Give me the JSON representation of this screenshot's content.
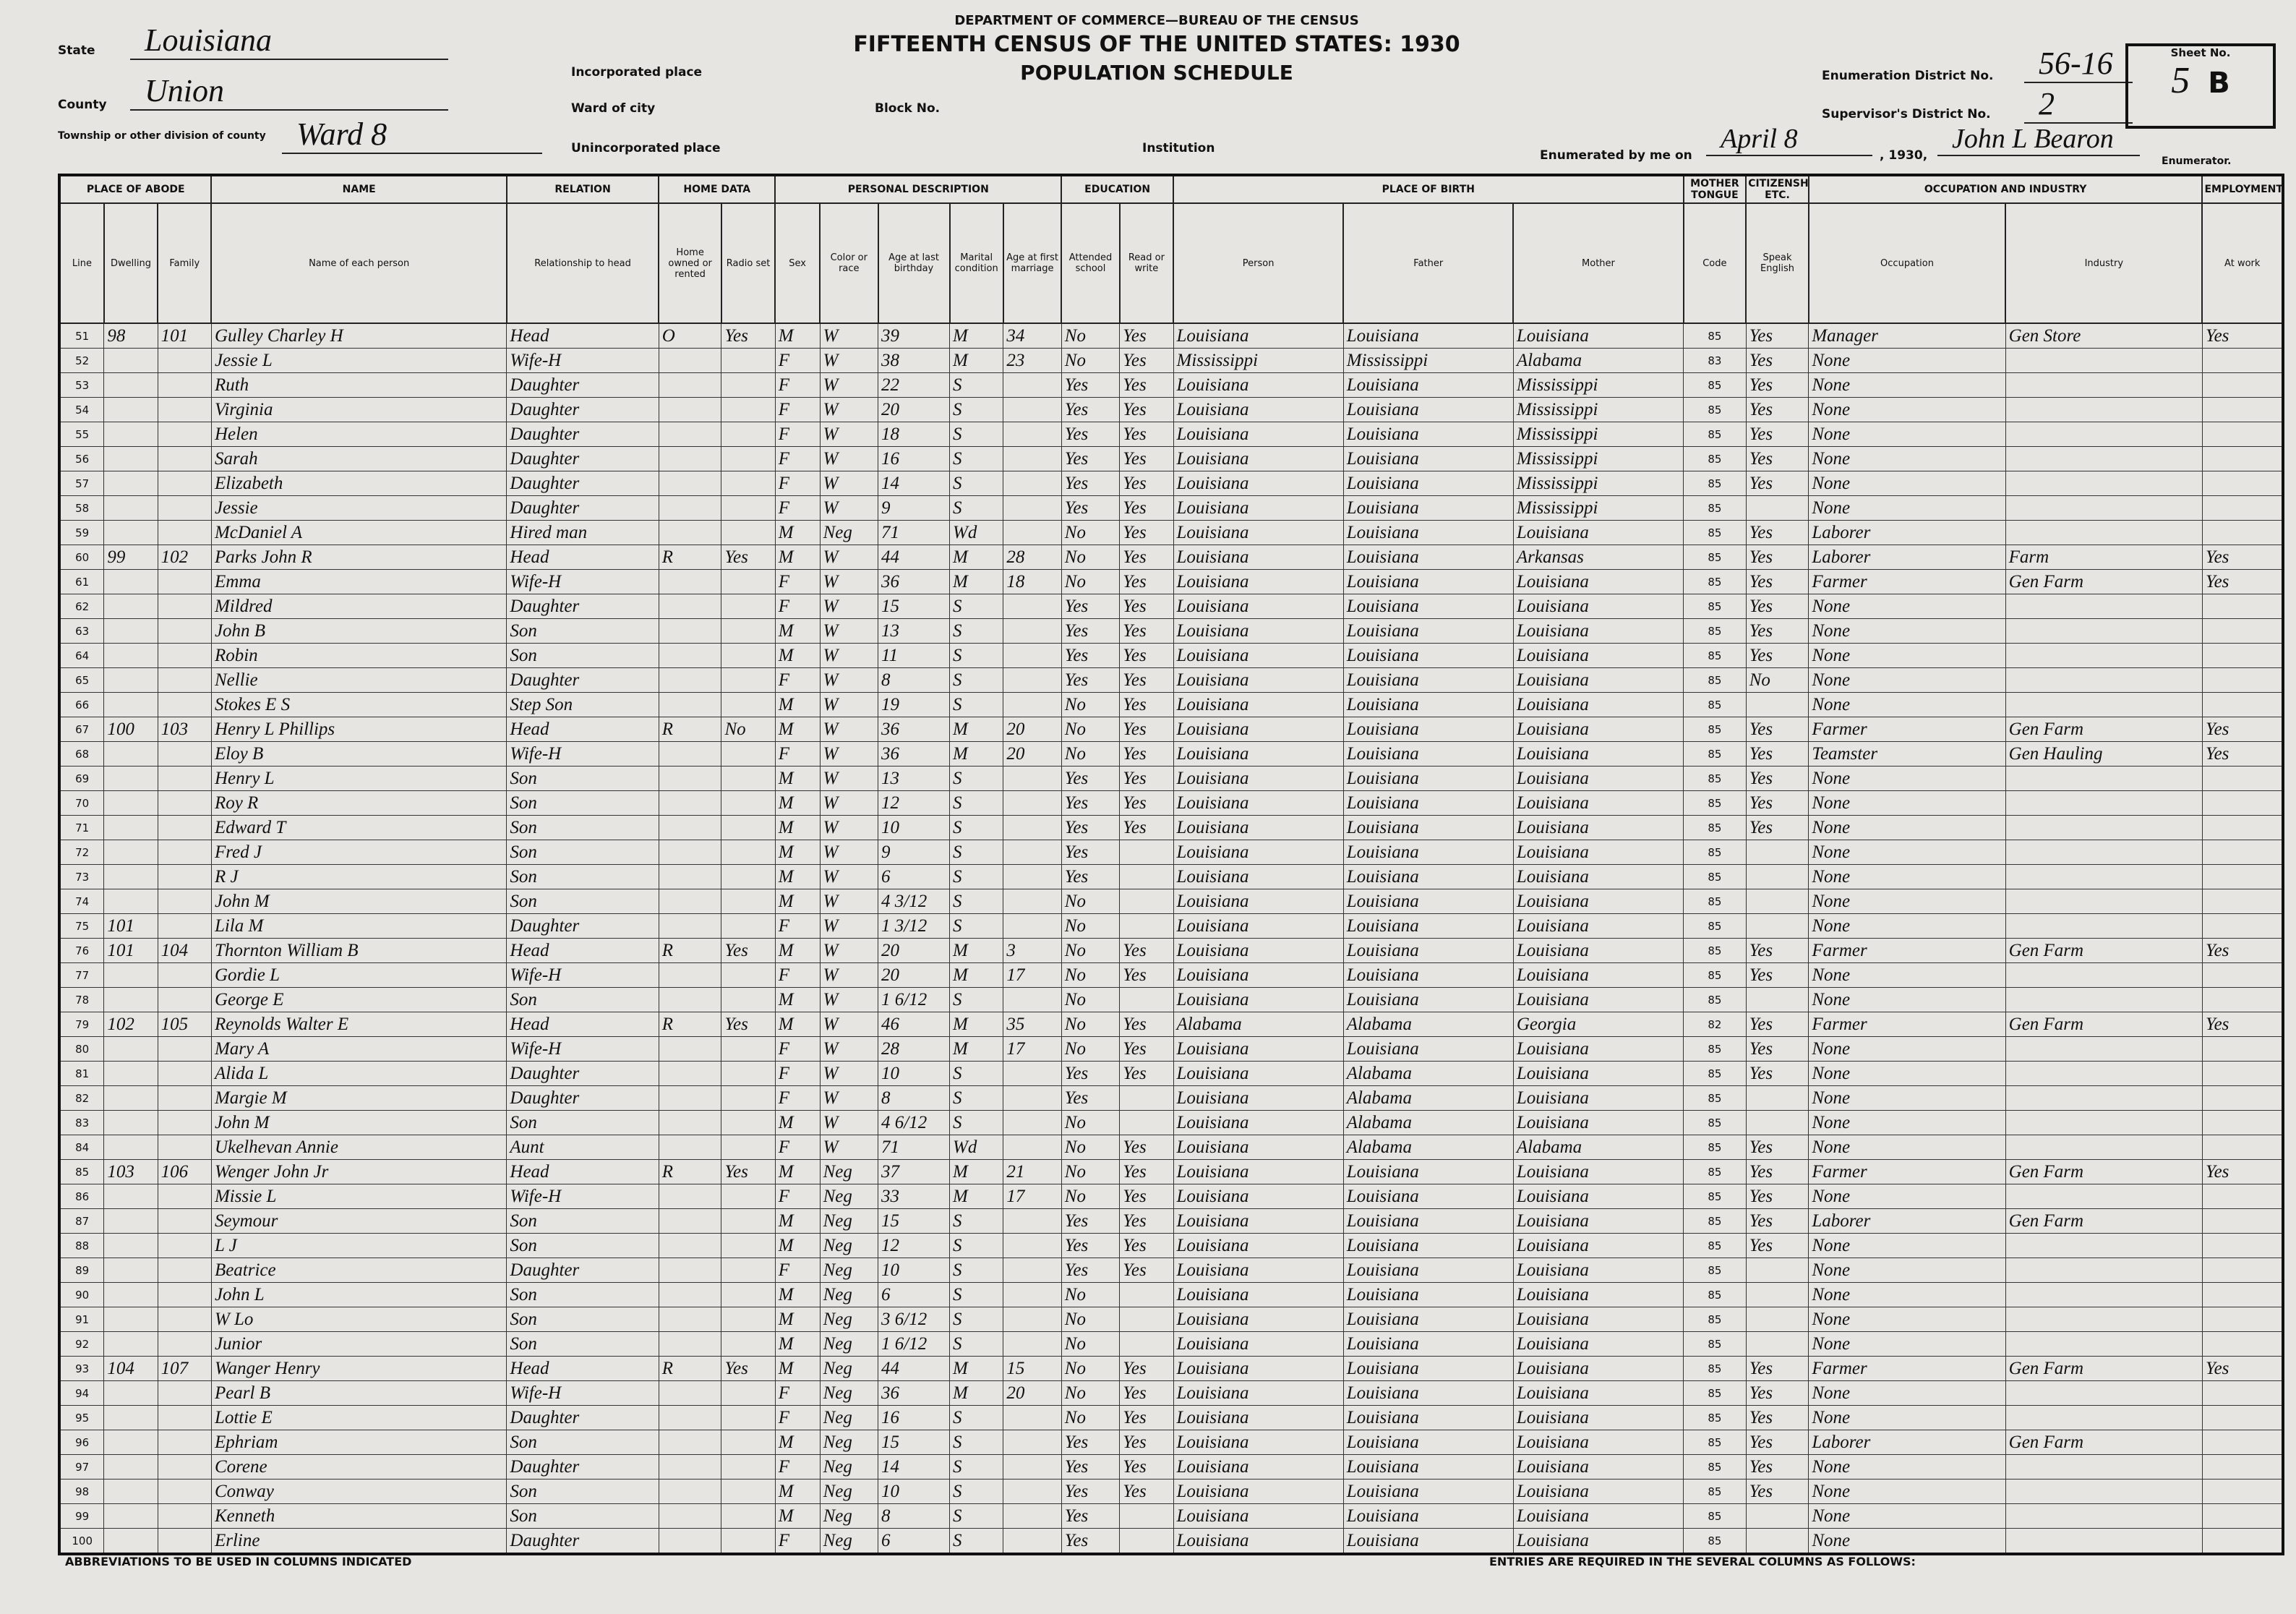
{
  "header": {
    "department": "DEPARTMENT OF COMMERCE—BUREAU OF THE CENSUS",
    "title": "FIFTEENTH CENSUS OF THE UNITED STATES: 1930",
    "subtitle": "POPULATION SCHEDULE",
    "state_label": "State",
    "state": "Louisiana",
    "county_label": "County",
    "county": "Union",
    "township_label": "Township or other division of county",
    "township": "Ward 8",
    "incorporated_label": "Incorporated place",
    "ward_label": "Ward of city",
    "block_label": "Block No.",
    "unincorporated_label": "Unincorporated place",
    "institution_label": "Institution",
    "district_label": "Enumeration District No.",
    "district": "56-16",
    "supervisor_label": "Supervisor's District No.",
    "supervisor": "2",
    "sheet_label": "Sheet No.",
    "sheet": "5",
    "sheet_side": "B",
    "enumerated_label": "Enumerated by me on",
    "date": "April 8",
    "year": ", 1930,",
    "enumerator": "John L Bearon",
    "enumerator_label": "Enumerator."
  },
  "table": {
    "groups": [
      "PLACE OF ABODE",
      "NAME",
      "RELATION",
      "HOME DATA",
      "PERSONAL DESCRIPTION",
      "EDUCATION",
      "PLACE OF BIRTH",
      "MOTHER TONGUE",
      "CITIZENSHIP, ETC.",
      "OCCUPATION AND INDUSTRY",
      "EMPLOYMENT"
    ],
    "columns": [
      "Line",
      "Dwelling",
      "Family",
      "Name of each person",
      "Relationship to head",
      "Home owned or rented",
      "Radio set",
      "Sex",
      "Color or race",
      "Age at last birthday",
      "Marital condition",
      "Age at first marriage",
      "Attended school",
      "Read or write",
      "Person",
      "Father",
      "Mother",
      "Code",
      "Speak English",
      "Occupation",
      "Industry",
      "At work"
    ],
    "rows": [
      [
        51,
        98,
        101,
        "Gulley Charley H",
        "Head",
        "O",
        "Yes",
        "M",
        "W",
        39,
        "M",
        34,
        "No",
        "Yes",
        "Louisiana",
        "Louisiana",
        "Louisiana",
        85,
        "Yes",
        "Manager",
        "Gen Store",
        "Yes"
      ],
      [
        52,
        null,
        null,
        "Jessie L",
        "Wife-H",
        null,
        null,
        "F",
        "W",
        38,
        "M",
        23,
        "No",
        "Yes",
        "Mississippi",
        "Mississippi",
        "Alabama",
        83,
        "Yes",
        "None",
        null,
        null
      ],
      [
        53,
        null,
        null,
        "Ruth",
        "Daughter",
        null,
        null,
        "F",
        "W",
        22,
        "S",
        null,
        "Yes",
        "Yes",
        "Louisiana",
        "Louisiana",
        "Mississippi",
        85,
        "Yes",
        "None",
        null,
        null
      ],
      [
        54,
        null,
        null,
        "Virginia",
        "Daughter",
        null,
        null,
        "F",
        "W",
        20,
        "S",
        null,
        "Yes",
        "Yes",
        "Louisiana",
        "Louisiana",
        "Mississippi",
        85,
        "Yes",
        "None",
        null,
        null
      ],
      [
        55,
        null,
        null,
        "Helen",
        "Daughter",
        null,
        null,
        "F",
        "W",
        18,
        "S",
        null,
        "Yes",
        "Yes",
        "Louisiana",
        "Louisiana",
        "Mississippi",
        85,
        "Yes",
        "None",
        null,
        null
      ],
      [
        56,
        null,
        null,
        "Sarah",
        "Daughter",
        null,
        null,
        "F",
        "W",
        16,
        "S",
        null,
        "Yes",
        "Yes",
        "Louisiana",
        "Louisiana",
        "Mississippi",
        85,
        "Yes",
        "None",
        null,
        null
      ],
      [
        57,
        null,
        null,
        "Elizabeth",
        "Daughter",
        null,
        null,
        "F",
        "W",
        14,
        "S",
        null,
        "Yes",
        "Yes",
        "Louisiana",
        "Louisiana",
        "Mississippi",
        85,
        "Yes",
        "None",
        null,
        null
      ],
      [
        58,
        null,
        null,
        "Jessie",
        "Daughter",
        null,
        null,
        "F",
        "W",
        9,
        "S",
        null,
        "Yes",
        "Yes",
        "Louisiana",
        "Louisiana",
        "Mississippi",
        85,
        null,
        "None",
        null,
        null
      ],
      [
        59,
        null,
        null,
        "McDaniel A",
        "Hired man",
        null,
        null,
        "M",
        "Neg",
        71,
        "Wd",
        null,
        "No",
        "Yes",
        "Louisiana",
        "Louisiana",
        "Louisiana",
        85,
        "Yes",
        "Laborer",
        null,
        null
      ],
      [
        60,
        99,
        102,
        "Parks John R",
        "Head",
        "R",
        "Yes",
        "M",
        "W",
        44,
        "M",
        28,
        "No",
        "Yes",
        "Louisiana",
        "Louisiana",
        "Arkansas",
        85,
        "Yes",
        "Laborer",
        "Farm",
        "Yes"
      ],
      [
        61,
        null,
        null,
        "Emma",
        "Wife-H",
        null,
        null,
        "F",
        "W",
        36,
        "M",
        18,
        "No",
        "Yes",
        "Louisiana",
        "Louisiana",
        "Louisiana",
        85,
        "Yes",
        "Farmer",
        "Gen Farm",
        "Yes"
      ],
      [
        62,
        null,
        null,
        "Mildred",
        "Daughter",
        null,
        null,
        "F",
        "W",
        15,
        "S",
        null,
        "Yes",
        "Yes",
        "Louisiana",
        "Louisiana",
        "Louisiana",
        85,
        "Yes",
        "None",
        null,
        null
      ],
      [
        63,
        null,
        null,
        "John B",
        "Son",
        null,
        null,
        "M",
        "W",
        13,
        "S",
        null,
        "Yes",
        "Yes",
        "Louisiana",
        "Louisiana",
        "Louisiana",
        85,
        "Yes",
        "None",
        null,
        null
      ],
      [
        64,
        null,
        null,
        "Robin",
        "Son",
        null,
        null,
        "M",
        "W",
        11,
        "S",
        null,
        "Yes",
        "Yes",
        "Louisiana",
        "Louisiana",
        "Louisiana",
        85,
        "Yes",
        "None",
        null,
        null
      ],
      [
        65,
        null,
        null,
        "Nellie",
        "Daughter",
        null,
        null,
        "F",
        "W",
        8,
        "S",
        null,
        "Yes",
        "Yes",
        "Louisiana",
        "Louisiana",
        "Louisiana",
        85,
        "No",
        "None",
        null,
        null
      ],
      [
        66,
        null,
        null,
        "Stokes E S",
        "Step Son",
        null,
        null,
        "M",
        "W",
        19,
        "S",
        null,
        "No",
        "Yes",
        "Louisiana",
        "Louisiana",
        "Louisiana",
        85,
        null,
        "None",
        null,
        null
      ],
      [
        67,
        100,
        103,
        "Henry L Phillips",
        "Head",
        "R",
        "No",
        "M",
        "W",
        36,
        "M",
        20,
        "No",
        "Yes",
        "Louisiana",
        "Louisiana",
        "Louisiana",
        85,
        "Yes",
        "Farmer",
        "Gen Farm",
        "Yes"
      ],
      [
        68,
        null,
        null,
        "Eloy B",
        "Wife-H",
        null,
        null,
        "F",
        "W",
        36,
        "M",
        20,
        "No",
        "Yes",
        "Louisiana",
        "Louisiana",
        "Louisiana",
        85,
        "Yes",
        "Teamster",
        "Gen Hauling",
        "Yes"
      ],
      [
        69,
        null,
        null,
        "Henry L",
        "Son",
        null,
        null,
        "M",
        "W",
        13,
        "S",
        null,
        "Yes",
        "Yes",
        "Louisiana",
        "Louisiana",
        "Louisiana",
        85,
        "Yes",
        "None",
        null,
        null
      ],
      [
        70,
        null,
        null,
        "Roy R",
        "Son",
        null,
        null,
        "M",
        "W",
        12,
        "S",
        null,
        "Yes",
        "Yes",
        "Louisiana",
        "Louisiana",
        "Louisiana",
        85,
        "Yes",
        "None",
        null,
        null
      ],
      [
        71,
        null,
        null,
        "Edward T",
        "Son",
        null,
        null,
        "M",
        "W",
        10,
        "S",
        null,
        "Yes",
        "Yes",
        "Louisiana",
        "Louisiana",
        "Louisiana",
        85,
        "Yes",
        "None",
        null,
        null
      ],
      [
        72,
        null,
        null,
        "Fred J",
        "Son",
        null,
        null,
        "M",
        "W",
        9,
        "S",
        null,
        "Yes",
        null,
        "Louisiana",
        "Louisiana",
        "Louisiana",
        85,
        null,
        "None",
        null,
        null
      ],
      [
        73,
        null,
        null,
        "R J",
        "Son",
        null,
        null,
        "M",
        "W",
        6,
        "S",
        null,
        "Yes",
        null,
        "Louisiana",
        "Louisiana",
        "Louisiana",
        85,
        null,
        "None",
        null,
        null
      ],
      [
        74,
        null,
        null,
        "John M",
        "Son",
        null,
        null,
        "M",
        "W",
        "4 3/12",
        "S",
        null,
        "No",
        null,
        "Louisiana",
        "Louisiana",
        "Louisiana",
        85,
        null,
        "None",
        null,
        null
      ],
      [
        75,
        101,
        null,
        "Lila M",
        "Daughter",
        null,
        null,
        "F",
        "W",
        "1 3/12",
        "S",
        null,
        "No",
        null,
        "Louisiana",
        "Louisiana",
        "Louisiana",
        85,
        null,
        "None",
        null,
        null
      ],
      [
        76,
        101,
        104,
        "Thornton William B",
        "Head",
        "R",
        "Yes",
        "M",
        "W",
        20,
        "M",
        3,
        "No",
        "Yes",
        "Louisiana",
        "Louisiana",
        "Louisiana",
        85,
        "Yes",
        "Farmer",
        "Gen Farm",
        "Yes"
      ],
      [
        77,
        null,
        null,
        "Gordie L",
        "Wife-H",
        null,
        null,
        "F",
        "W",
        20,
        "M",
        17,
        "No",
        "Yes",
        "Louisiana",
        "Louisiana",
        "Louisiana",
        85,
        "Yes",
        "None",
        null,
        null
      ],
      [
        78,
        null,
        null,
        "George E",
        "Son",
        null,
        null,
        "M",
        "W",
        "1 6/12",
        "S",
        null,
        "No",
        null,
        "Louisiana",
        "Louisiana",
        "Louisiana",
        85,
        null,
        "None",
        null,
        null
      ],
      [
        79,
        102,
        105,
        "Reynolds Walter E",
        "Head",
        "R",
        "Yes",
        "M",
        "W",
        46,
        "M",
        35,
        "No",
        "Yes",
        "Alabama",
        "Alabama",
        "Georgia",
        82,
        "Yes",
        "Farmer",
        "Gen Farm",
        "Yes"
      ],
      [
        80,
        null,
        null,
        "Mary A",
        "Wife-H",
        null,
        null,
        "F",
        "W",
        28,
        "M",
        17,
        "No",
        "Yes",
        "Louisiana",
        "Louisiana",
        "Louisiana",
        85,
        "Yes",
        "None",
        null,
        null
      ],
      [
        81,
        null,
        null,
        "Alida L",
        "Daughter",
        null,
        null,
        "F",
        "W",
        10,
        "S",
        null,
        "Yes",
        "Yes",
        "Louisiana",
        "Alabama",
        "Louisiana",
        85,
        "Yes",
        "None",
        null,
        null
      ],
      [
        82,
        null,
        null,
        "Margie M",
        "Daughter",
        null,
        null,
        "F",
        "W",
        8,
        "S",
        null,
        "Yes",
        null,
        "Louisiana",
        "Alabama",
        "Louisiana",
        85,
        null,
        "None",
        null,
        null
      ],
      [
        83,
        null,
        null,
        "John M",
        "Son",
        null,
        null,
        "M",
        "W",
        "4 6/12",
        "S",
        null,
        "No",
        null,
        "Louisiana",
        "Alabama",
        "Louisiana",
        85,
        null,
        "None",
        null,
        null
      ],
      [
        84,
        null,
        null,
        "Ukelhevan Annie",
        "Aunt",
        null,
        null,
        "F",
        "W",
        71,
        "Wd",
        null,
        "No",
        "Yes",
        "Louisiana",
        "Alabama",
        "Alabama",
        85,
        "Yes",
        "None",
        null,
        null
      ],
      [
        85,
        103,
        106,
        "Wenger John Jr",
        "Head",
        "R",
        "Yes",
        "M",
        "Neg",
        37,
        "M",
        21,
        "No",
        "Yes",
        "Louisiana",
        "Louisiana",
        "Louisiana",
        85,
        "Yes",
        "Farmer",
        "Gen Farm",
        "Yes"
      ],
      [
        86,
        null,
        null,
        "Missie L",
        "Wife-H",
        null,
        null,
        "F",
        "Neg",
        33,
        "M",
        17,
        "No",
        "Yes",
        "Louisiana",
        "Louisiana",
        "Louisiana",
        85,
        "Yes",
        "None",
        null,
        null
      ],
      [
        87,
        null,
        null,
        "Seymour",
        "Son",
        null,
        null,
        "M",
        "Neg",
        15,
        "S",
        null,
        "Yes",
        "Yes",
        "Louisiana",
        "Louisiana",
        "Louisiana",
        85,
        "Yes",
        "Laborer",
        "Gen Farm",
        null
      ],
      [
        88,
        null,
        null,
        "L J",
        "Son",
        null,
        null,
        "M",
        "Neg",
        12,
        "S",
        null,
        "Yes",
        "Yes",
        "Louisiana",
        "Louisiana",
        "Louisiana",
        85,
        "Yes",
        "None",
        null,
        null
      ],
      [
        89,
        null,
        null,
        "Beatrice",
        "Daughter",
        null,
        null,
        "F",
        "Neg",
        10,
        "S",
        null,
        "Yes",
        "Yes",
        "Louisiana",
        "Louisiana",
        "Louisiana",
        85,
        null,
        "None",
        null,
        null
      ],
      [
        90,
        null,
        null,
        "John L",
        "Son",
        null,
        null,
        "M",
        "Neg",
        6,
        "S",
        null,
        "No",
        null,
        "Louisiana",
        "Louisiana",
        "Louisiana",
        85,
        null,
        "None",
        null,
        null
      ],
      [
        91,
        null,
        null,
        "W Lo",
        "Son",
        null,
        null,
        "M",
        "Neg",
        "3 6/12",
        "S",
        null,
        "No",
        null,
        "Louisiana",
        "Louisiana",
        "Louisiana",
        85,
        null,
        "None",
        null,
        null
      ],
      [
        92,
        null,
        null,
        "Junior",
        "Son",
        null,
        null,
        "M",
        "Neg",
        "1 6/12",
        "S",
        null,
        "No",
        null,
        "Louisiana",
        "Louisiana",
        "Louisiana",
        85,
        null,
        "None",
        null,
        null
      ],
      [
        93,
        104,
        107,
        "Wanger Henry",
        "Head",
        "R",
        "Yes",
        "M",
        "Neg",
        44,
        "M",
        15,
        "No",
        "Yes",
        "Louisiana",
        "Louisiana",
        "Louisiana",
        85,
        "Yes",
        "Farmer",
        "Gen Farm",
        "Yes"
      ],
      [
        94,
        null,
        null,
        "Pearl B",
        "Wife-H",
        null,
        null,
        "F",
        "Neg",
        36,
        "M",
        20,
        "No",
        "Yes",
        "Louisiana",
        "Louisiana",
        "Louisiana",
        85,
        "Yes",
        "None",
        null,
        null
      ],
      [
        95,
        null,
        null,
        "Lottie E",
        "Daughter",
        null,
        null,
        "F",
        "Neg",
        16,
        "S",
        null,
        "No",
        "Yes",
        "Louisiana",
        "Louisiana",
        "Louisiana",
        85,
        "Yes",
        "None",
        null,
        null
      ],
      [
        96,
        null,
        null,
        "Ephriam",
        "Son",
        null,
        null,
        "M",
        "Neg",
        15,
        "S",
        null,
        "Yes",
        "Yes",
        "Louisiana",
        "Louisiana",
        "Louisiana",
        85,
        "Yes",
        "Laborer",
        "Gen Farm",
        null
      ],
      [
        97,
        null,
        null,
        "Corene",
        "Daughter",
        null,
        null,
        "F",
        "Neg",
        14,
        "S",
        null,
        "Yes",
        "Yes",
        "Louisiana",
        "Louisiana",
        "Louisiana",
        85,
        "Yes",
        "None",
        null,
        null
      ],
      [
        98,
        null,
        null,
        "Conway",
        "Son",
        null,
        null,
        "M",
        "Neg",
        10,
        "S",
        null,
        "Yes",
        "Yes",
        "Louisiana",
        "Louisiana",
        "Louisiana",
        85,
        "Yes",
        "None",
        null,
        null
      ],
      [
        99,
        null,
        null,
        "Kenneth",
        "Son",
        null,
        null,
        "M",
        "Neg",
        8,
        "S",
        null,
        "Yes",
        null,
        "Louisiana",
        "Louisiana",
        "Louisiana",
        85,
        null,
        "None",
        null,
        null
      ],
      [
        100,
        null,
        null,
        "Erline",
        "Daughter",
        null,
        null,
        "F",
        "Neg",
        6,
        "S",
        null,
        "Yes",
        null,
        "Louisiana",
        "Louisiana",
        "Louisiana",
        85,
        null,
        "None",
        null,
        null
      ]
    ]
  },
  "footer": {
    "abbreviations": "ABBREVIATIONS TO BE USED IN COLUMNS INDICATED",
    "entries": "ENTRIES ARE REQUIRED IN THE SEVERAL COLUMNS AS FOLLOWS:"
  }
}
